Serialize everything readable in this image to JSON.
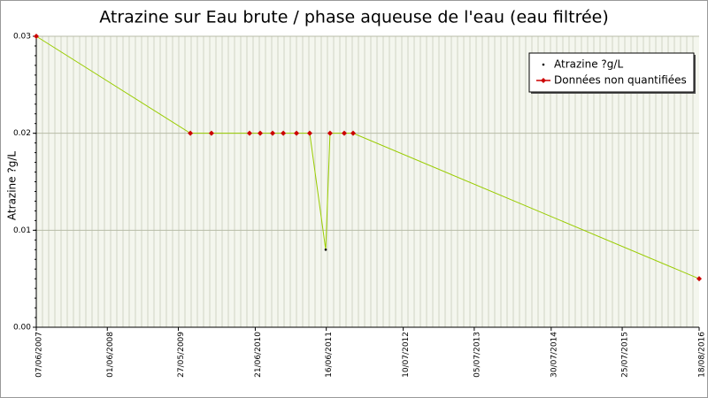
{
  "chart_data": {
    "type": "line",
    "title": "Atrazine sur Eau brute / phase aqueuse de l'eau (eau filtrée)",
    "y_label": "Atrazine ?g/L",
    "x": [
      "2007-06-07",
      "2009-07-27",
      "2009-11-11",
      "2010-05-23",
      "2010-07-16",
      "2010-09-17",
      "2010-11-10",
      "2011-01-16",
      "2011-03-24",
      "2011-06-13",
      "2011-07-05",
      "2011-09-15",
      "2011-10-30",
      "2016-08-18"
    ],
    "series": [
      {
        "name": "Atrazine ?g/L",
        "color": "#000000",
        "line_color": "#99cc00",
        "values": [
          0.03,
          0.02,
          0.02,
          0.02,
          0.02,
          0.02,
          0.02,
          0.02,
          0.02,
          0.008,
          0.02,
          0.02,
          0.02,
          0.005
        ]
      }
    ],
    "non_quantified": {
      "name": "Données non quantifiées",
      "color": "#cc0000",
      "flags": [
        true,
        true,
        true,
        true,
        true,
        true,
        true,
        true,
        true,
        false,
        true,
        true,
        true,
        true
      ]
    },
    "xlim": [
      "2007-06-07",
      "2016-08-18"
    ],
    "xticks": [
      {
        "value": "2007-06-07",
        "label": "07/06/2007"
      },
      {
        "value": "2008-06-01",
        "label": "01/06/2008"
      },
      {
        "value": "2009-05-27",
        "label": "27/05/2009"
      },
      {
        "value": "2010-06-21",
        "label": "21/06/2010"
      },
      {
        "value": "2011-06-16",
        "label": "16/06/2011"
      },
      {
        "value": "2012-07-10",
        "label": "10/07/2012"
      },
      {
        "value": "2013-07-05",
        "label": "05/07/2013"
      },
      {
        "value": "2014-07-30",
        "label": "30/07/2014"
      },
      {
        "value": "2015-07-25",
        "label": "25/07/2015"
      },
      {
        "value": "2016-08-18",
        "label": "18/08/2016"
      }
    ],
    "ylim": [
      0,
      0.03
    ],
    "yticks": [
      {
        "value": 0,
        "label": "0.00"
      },
      0.01,
      0.02,
      0.03
    ],
    "grid": true,
    "legend": "top-right"
  }
}
